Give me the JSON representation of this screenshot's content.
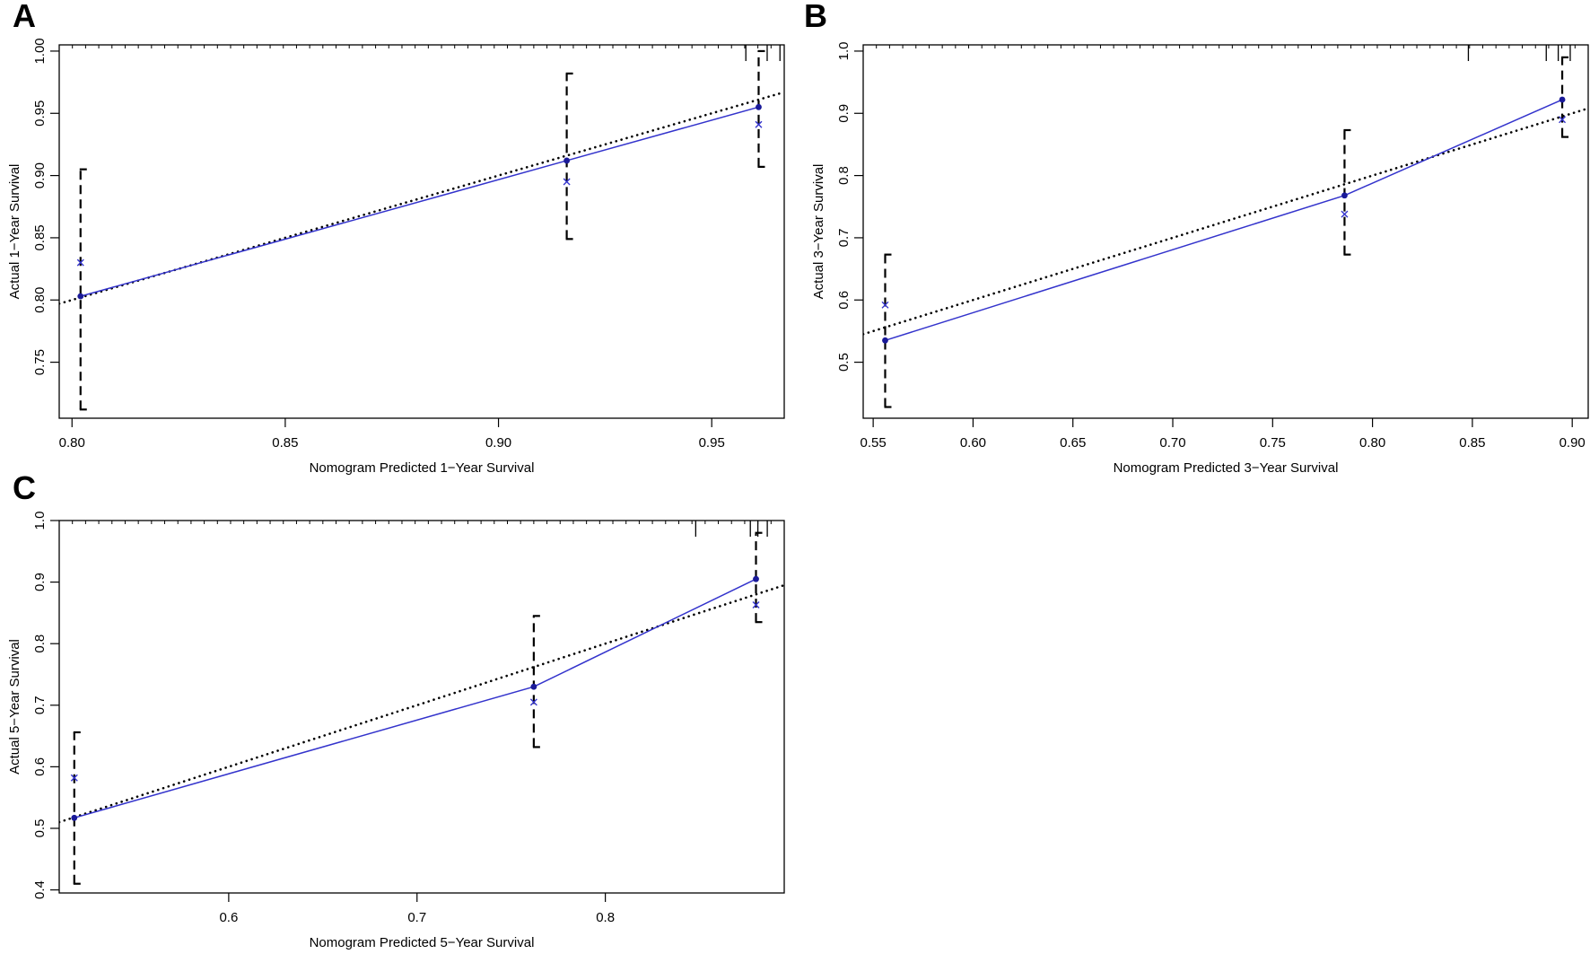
{
  "figure": {
    "panels": [
      {
        "letter": "A",
        "chart_data": {
          "type": "line",
          "xlabel": "Nomogram Predicted 1−Year Survival",
          "ylabel": "Actual 1−Year Survival",
          "xlim": [
            0.797,
            0.967
          ],
          "ylim": [
            0.705,
            1.005
          ],
          "x_ticks": [
            "0.80",
            "0.85",
            "0.90",
            "0.95"
          ],
          "y_ticks": [
            "0.75",
            "0.80",
            "0.85",
            "0.90",
            "0.95",
            "1.00"
          ],
          "grid": false,
          "reference_line": {
            "style": "dotted",
            "slope": 1,
            "intercept": 0
          },
          "series": [
            {
              "style": "solid-line-with-dots",
              "color": "#3333cc",
              "x": [
                0.802,
                0.916,
                0.961
              ],
              "y": [
                0.803,
                0.912,
                0.955
              ]
            },
            {
              "style": "cross-markers",
              "color": "#3333cc",
              "x": [
                0.802,
                0.916,
                0.961
              ],
              "y": [
                0.83,
                0.895,
                0.941
              ]
            }
          ],
          "error_bars": [
            {
              "x": 0.802,
              "low": 0.712,
              "high": 0.905
            },
            {
              "x": 0.916,
              "low": 0.849,
              "high": 0.982
            },
            {
              "x": 0.961,
              "low": 0.907,
              "high": 1.0
            }
          ],
          "rug_ticks": [
            0.958,
            0.963,
            0.966
          ]
        }
      },
      {
        "letter": "B",
        "chart_data": {
          "type": "line",
          "xlabel": "Nomogram Predicted 3−Year Survival",
          "ylabel": "Actual 3−Year Survival",
          "xlim": [
            0.545,
            0.908
          ],
          "ylim": [
            0.41,
            1.01
          ],
          "x_ticks": [
            "0.55",
            "0.60",
            "0.65",
            "0.70",
            "0.75",
            "0.80",
            "0.85",
            "0.90"
          ],
          "y_ticks": [
            "0.5",
            "0.6",
            "0.7",
            "0.8",
            "0.9",
            "1.0"
          ],
          "grid": false,
          "reference_line": {
            "style": "dotted",
            "slope": 1,
            "intercept": 0
          },
          "series": [
            {
              "style": "solid-line-with-dots",
              "color": "#3333cc",
              "x": [
                0.556,
                0.786,
                0.895
              ],
              "y": [
                0.535,
                0.768,
                0.922
              ]
            },
            {
              "style": "cross-markers",
              "color": "#3333cc",
              "x": [
                0.556,
                0.786,
                0.895
              ],
              "y": [
                0.592,
                0.738,
                0.89
              ]
            }
          ],
          "error_bars": [
            {
              "x": 0.556,
              "low": 0.428,
              "high": 0.673
            },
            {
              "x": 0.786,
              "low": 0.673,
              "high": 0.873
            },
            {
              "x": 0.895,
              "low": 0.862,
              "high": 0.99
            }
          ],
          "rug_ticks": [
            0.848,
            0.887,
            0.893,
            0.899
          ]
        }
      },
      {
        "letter": "C",
        "chart_data": {
          "type": "line",
          "xlabel": "Nomogram Predicted 5−Year Survival",
          "ylabel": "Actual 5−Year Survival",
          "xlim": [
            0.51,
            0.895
          ],
          "ylim": [
            0.395,
            1.0
          ],
          "x_ticks": [
            "0.6",
            "0.7",
            "0.8"
          ],
          "y_ticks": [
            "0.4",
            "0.5",
            "0.6",
            "0.7",
            "0.8",
            "0.9",
            "1.0"
          ],
          "grid": false,
          "reference_line": {
            "style": "dotted",
            "slope": 1,
            "intercept": 0
          },
          "series": [
            {
              "style": "solid-line-with-dots",
              "color": "#3333cc",
              "x": [
                0.518,
                0.762,
                0.88
              ],
              "y": [
                0.517,
                0.73,
                0.905
              ]
            },
            {
              "style": "cross-markers",
              "color": "#3333cc",
              "x": [
                0.518,
                0.762,
                0.88
              ],
              "y": [
                0.582,
                0.705,
                0.863
              ]
            }
          ],
          "error_bars": [
            {
              "x": 0.518,
              "low": 0.41,
              "high": 0.656
            },
            {
              "x": 0.762,
              "low": 0.632,
              "high": 0.845
            },
            {
              "x": 0.88,
              "low": 0.835,
              "high": 0.98
            }
          ],
          "rug_ticks": [
            0.848,
            0.877,
            0.881,
            0.886
          ]
        }
      }
    ]
  }
}
